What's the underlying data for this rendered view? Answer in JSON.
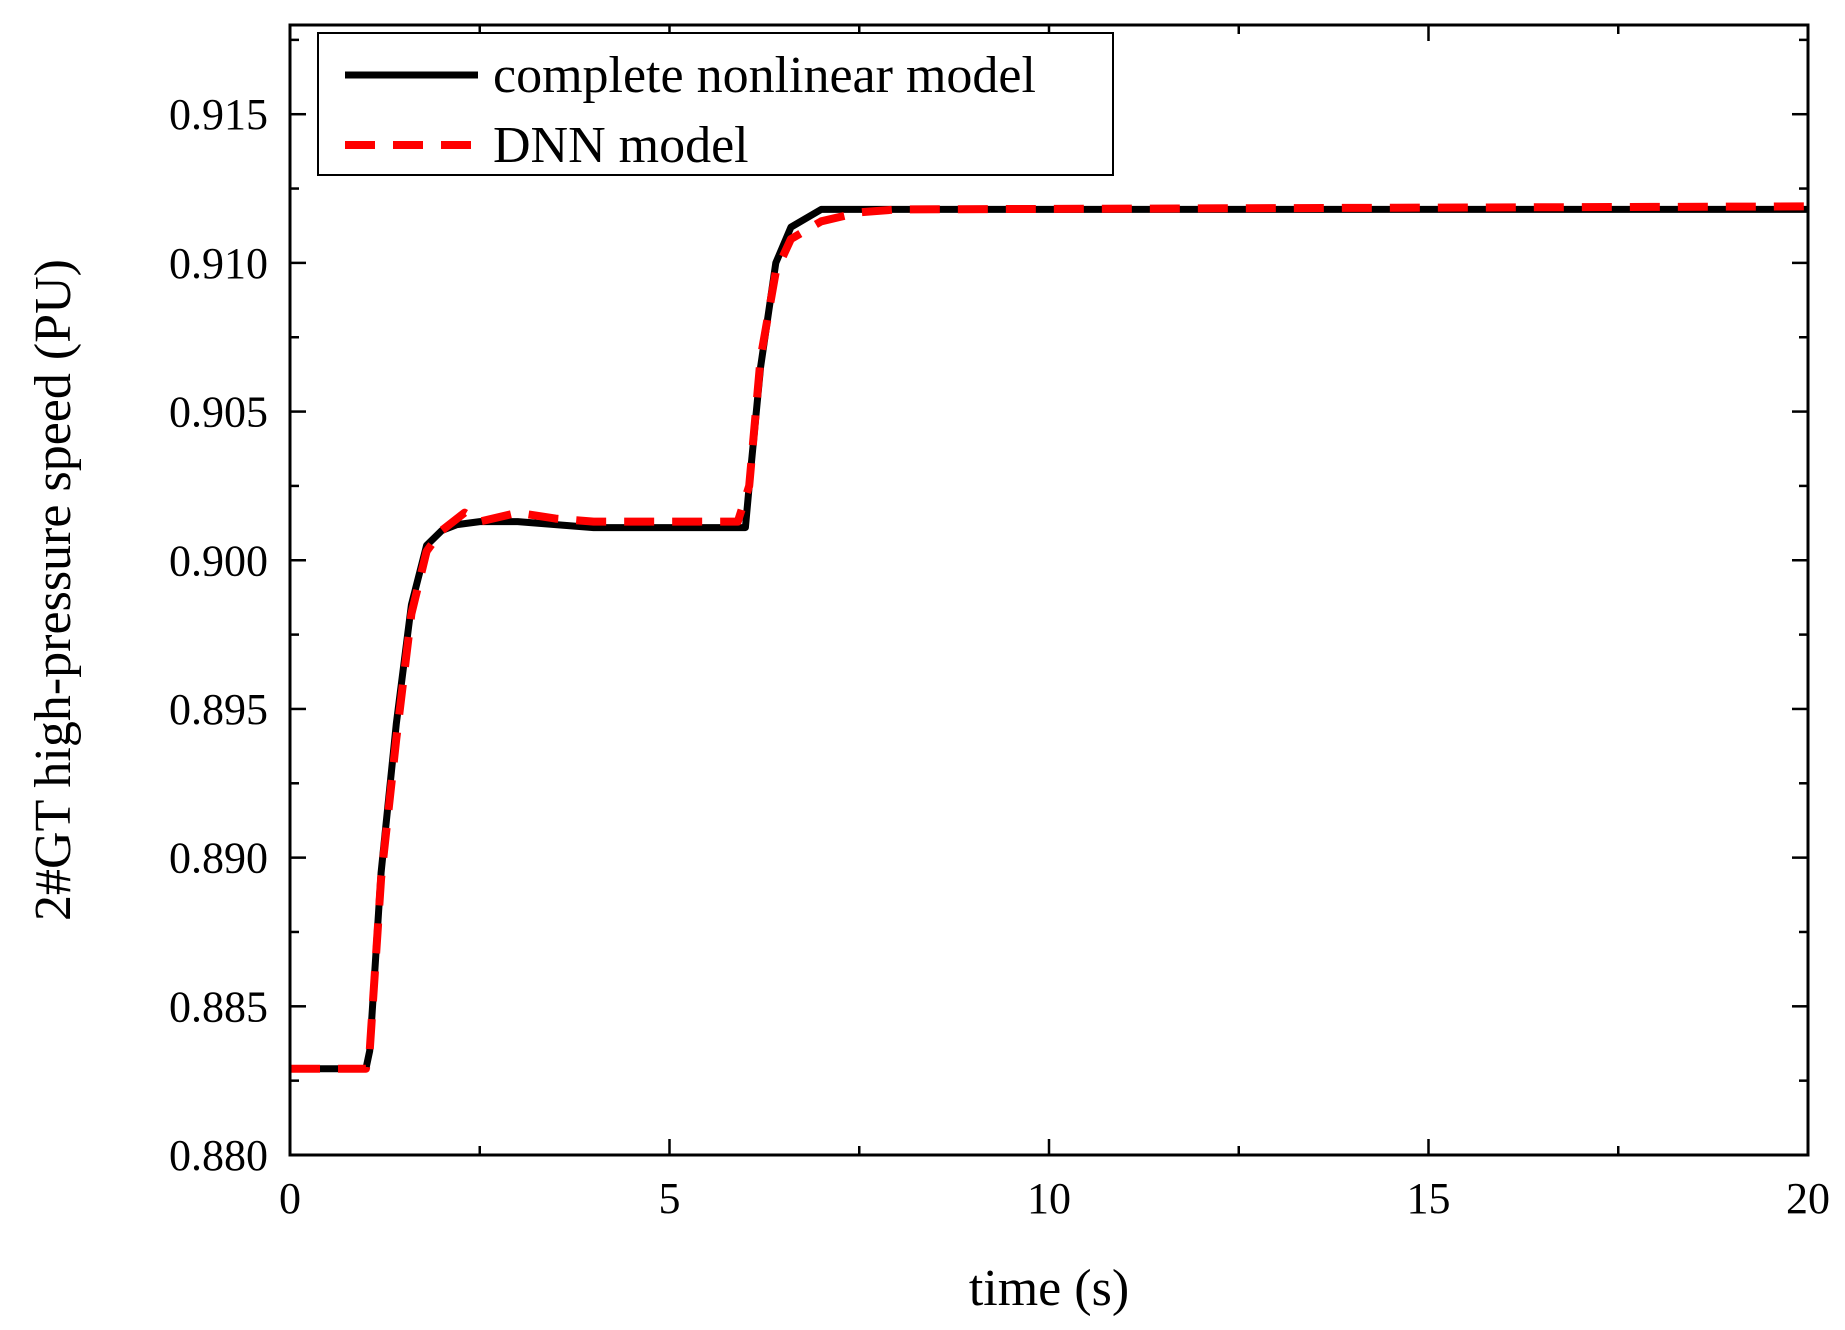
{
  "chart_data": {
    "type": "line",
    "xlabel": "time (s)",
    "ylabel": "2#GT high-pressure speed (PU)",
    "xlim": [
      0,
      20
    ],
    "ylim": [
      0.88,
      0.918
    ],
    "x_ticks": [
      "0",
      "5",
      "10",
      "15",
      "20"
    ],
    "y_ticks": [
      "0.880",
      "0.885",
      "0.890",
      "0.895",
      "0.900",
      "0.905",
      "0.910",
      "0.915"
    ],
    "grid": false,
    "legend_position": "top-left",
    "series": [
      {
        "name": "complete nonlinear model",
        "color": "#000000",
        "style": "solid",
        "points": [
          [
            0,
            0.8829
          ],
          [
            1.0,
            0.8829
          ],
          [
            1.05,
            0.8835
          ],
          [
            1.2,
            0.8895
          ],
          [
            1.4,
            0.8945
          ],
          [
            1.6,
            0.8985
          ],
          [
            1.8,
            0.9005
          ],
          [
            2.0,
            0.901
          ],
          [
            2.2,
            0.9012
          ],
          [
            2.5,
            0.9013
          ],
          [
            3.0,
            0.9013
          ],
          [
            3.5,
            0.9012
          ],
          [
            4.0,
            0.9011
          ],
          [
            5.0,
            0.9011
          ],
          [
            6.0,
            0.9011
          ],
          [
            6.05,
            0.9025
          ],
          [
            6.2,
            0.9065
          ],
          [
            6.4,
            0.91
          ],
          [
            6.6,
            0.9112
          ],
          [
            7.0,
            0.9118
          ],
          [
            8.0,
            0.9118
          ],
          [
            20.0,
            0.9118
          ]
        ]
      },
      {
        "name": "DNN model",
        "color": "#ff0000",
        "style": "dashed",
        "points": [
          [
            0,
            0.8829
          ],
          [
            1.0,
            0.8829
          ],
          [
            1.05,
            0.8835
          ],
          [
            1.2,
            0.8893
          ],
          [
            1.4,
            0.894
          ],
          [
            1.6,
            0.8982
          ],
          [
            1.8,
            0.9003
          ],
          [
            2.0,
            0.901
          ],
          [
            2.3,
            0.9016
          ],
          [
            2.5,
            0.9013
          ],
          [
            3.0,
            0.9016
          ],
          [
            3.5,
            0.9014
          ],
          [
            4.0,
            0.9013
          ],
          [
            5.0,
            0.9013
          ],
          [
            5.9,
            0.9013
          ],
          [
            6.05,
            0.9025
          ],
          [
            6.2,
            0.9068
          ],
          [
            6.4,
            0.9097
          ],
          [
            6.6,
            0.9108
          ],
          [
            7.0,
            0.9114
          ],
          [
            7.5,
            0.9117
          ],
          [
            8.0,
            0.9118
          ],
          [
            20.0,
            0.9119
          ]
        ]
      }
    ]
  }
}
